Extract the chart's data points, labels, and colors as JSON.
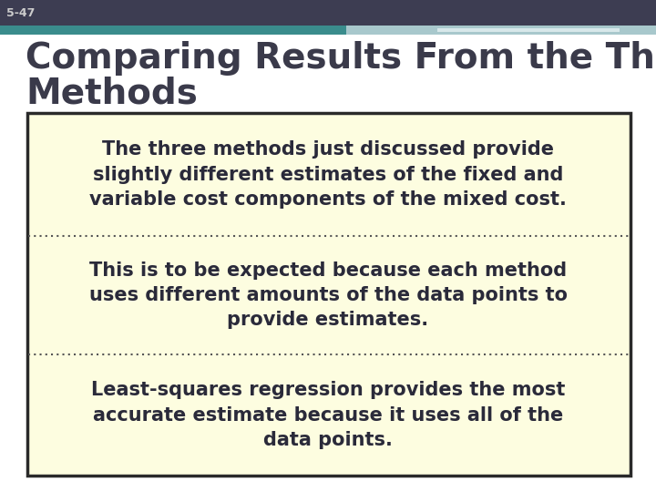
{
  "slide_number": "5-47",
  "title_line1": "Comparing Results From the Three",
  "title_line2": "Methods",
  "background_color": "#ffffff",
  "header_dark_color": "#3d3d52",
  "header_teal_color": "#3a8c8c",
  "header_light_teal": "#a8c8cc",
  "header_white_bar": "#d8e8ea",
  "title_color": "#3a3a4a",
  "box_background": "#fdfde0",
  "box_border_color": "#2a2a2a",
  "bullet1": "The three methods just discussed provide\nslightly different estimates of the fixed and\nvariable cost components of the mixed cost.",
  "bullet2": "This is to be expected because each method\nuses different amounts of the data points to\nprovide estimates.",
  "bullet3": "Least-squares regression provides the most\naccurate estimate because it uses all of the\ndata points.",
  "text_color": "#2a2a3a",
  "divider_color": "#555555",
  "title_fontsize": 28,
  "body_fontsize": 15,
  "slide_num_fontsize": 9
}
